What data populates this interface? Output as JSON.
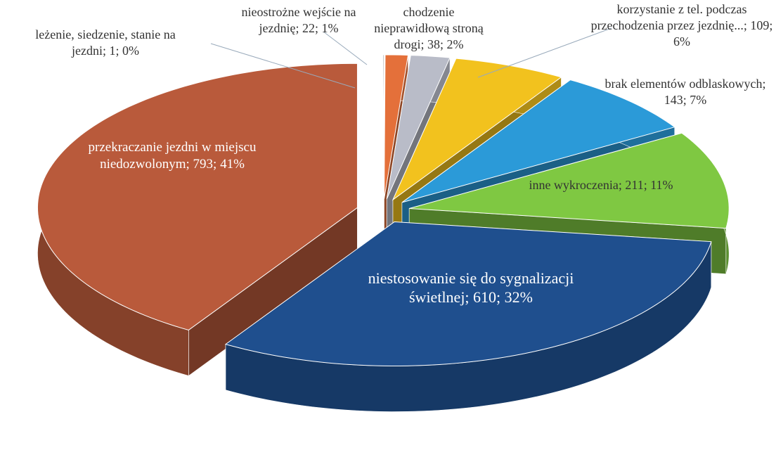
{
  "chart_data": {
    "type": "pie3d",
    "categories": [
      "leżenie, siedzenie, stanie na jezdni",
      "nieostrożne wejście na jezdnię",
      "chodzenie nieprawidłową stroną drogi",
      "korzystanie z tel. podczas przechodzenia przez jezdnię...",
      "brak elementów odblaskowych",
      "inne wykroczenia",
      "niestosowanie się do sygnalizacji świetlnej",
      "przekraczanie jezdni w miejscu niedozwolonym"
    ],
    "values": [
      1,
      22,
      38,
      109,
      143,
      211,
      610,
      793
    ],
    "value_labels": [
      "leżenie, siedzenie, stanie na jezdni; 1; 0%",
      "nieostrożne wejście na jezdnię; 22; 1%",
      "chodzenie nieprawidłową stroną drogi; 38; 2%",
      "korzystanie z tel. podczas przechodzenia przez jezdnię...; 109; 6%",
      "brak elementów odblaskowych; 143; 7%",
      "inne wykroczenia; 211; 11%",
      "niestosowanie się do sygnalizacji świetlnej; 610; 32%",
      "przekraczanie jezdni w miejscu niedozwolonym; 793; 41%"
    ],
    "colors": [
      "#8a8a8a",
      "#e4703a",
      "#b9bcc8",
      "#f2c21e",
      "#2b9ad8",
      "#7fc842",
      "#1f4f8e",
      "#b95a3b"
    ]
  }
}
